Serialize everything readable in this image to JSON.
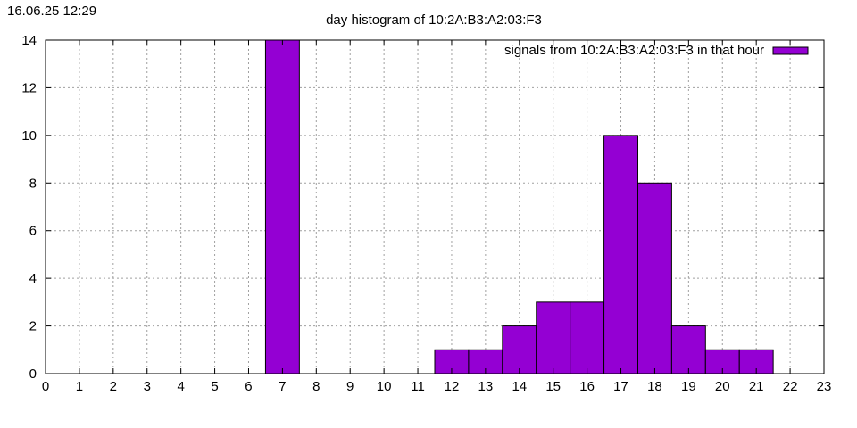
{
  "timestamp": "16.06.25 12:29",
  "chart_data": {
    "type": "bar",
    "title": "day histogram of 10:2A:B3:A2:03:F3",
    "xlabel": "",
    "ylabel": "",
    "xlim": [
      0,
      23
    ],
    "ylim": [
      0,
      14
    ],
    "x_ticks": [
      0,
      1,
      2,
      3,
      4,
      5,
      6,
      7,
      8,
      9,
      10,
      11,
      12,
      13,
      14,
      15,
      16,
      17,
      18,
      19,
      20,
      21,
      22,
      23
    ],
    "y_ticks": [
      0,
      2,
      4,
      6,
      8,
      10,
      12,
      14
    ],
    "grid": true,
    "legend_position": "top-right",
    "bar_color": "#9400d3",
    "series": [
      {
        "name": "signals from 10:2A:B3:A2:03:F3 in that hour",
        "x": [
          7,
          12,
          13,
          14,
          15,
          16,
          17,
          18,
          19,
          20,
          21
        ],
        "values": [
          14,
          1,
          1,
          2,
          3,
          3,
          10,
          8,
          2,
          1,
          1
        ]
      }
    ]
  }
}
